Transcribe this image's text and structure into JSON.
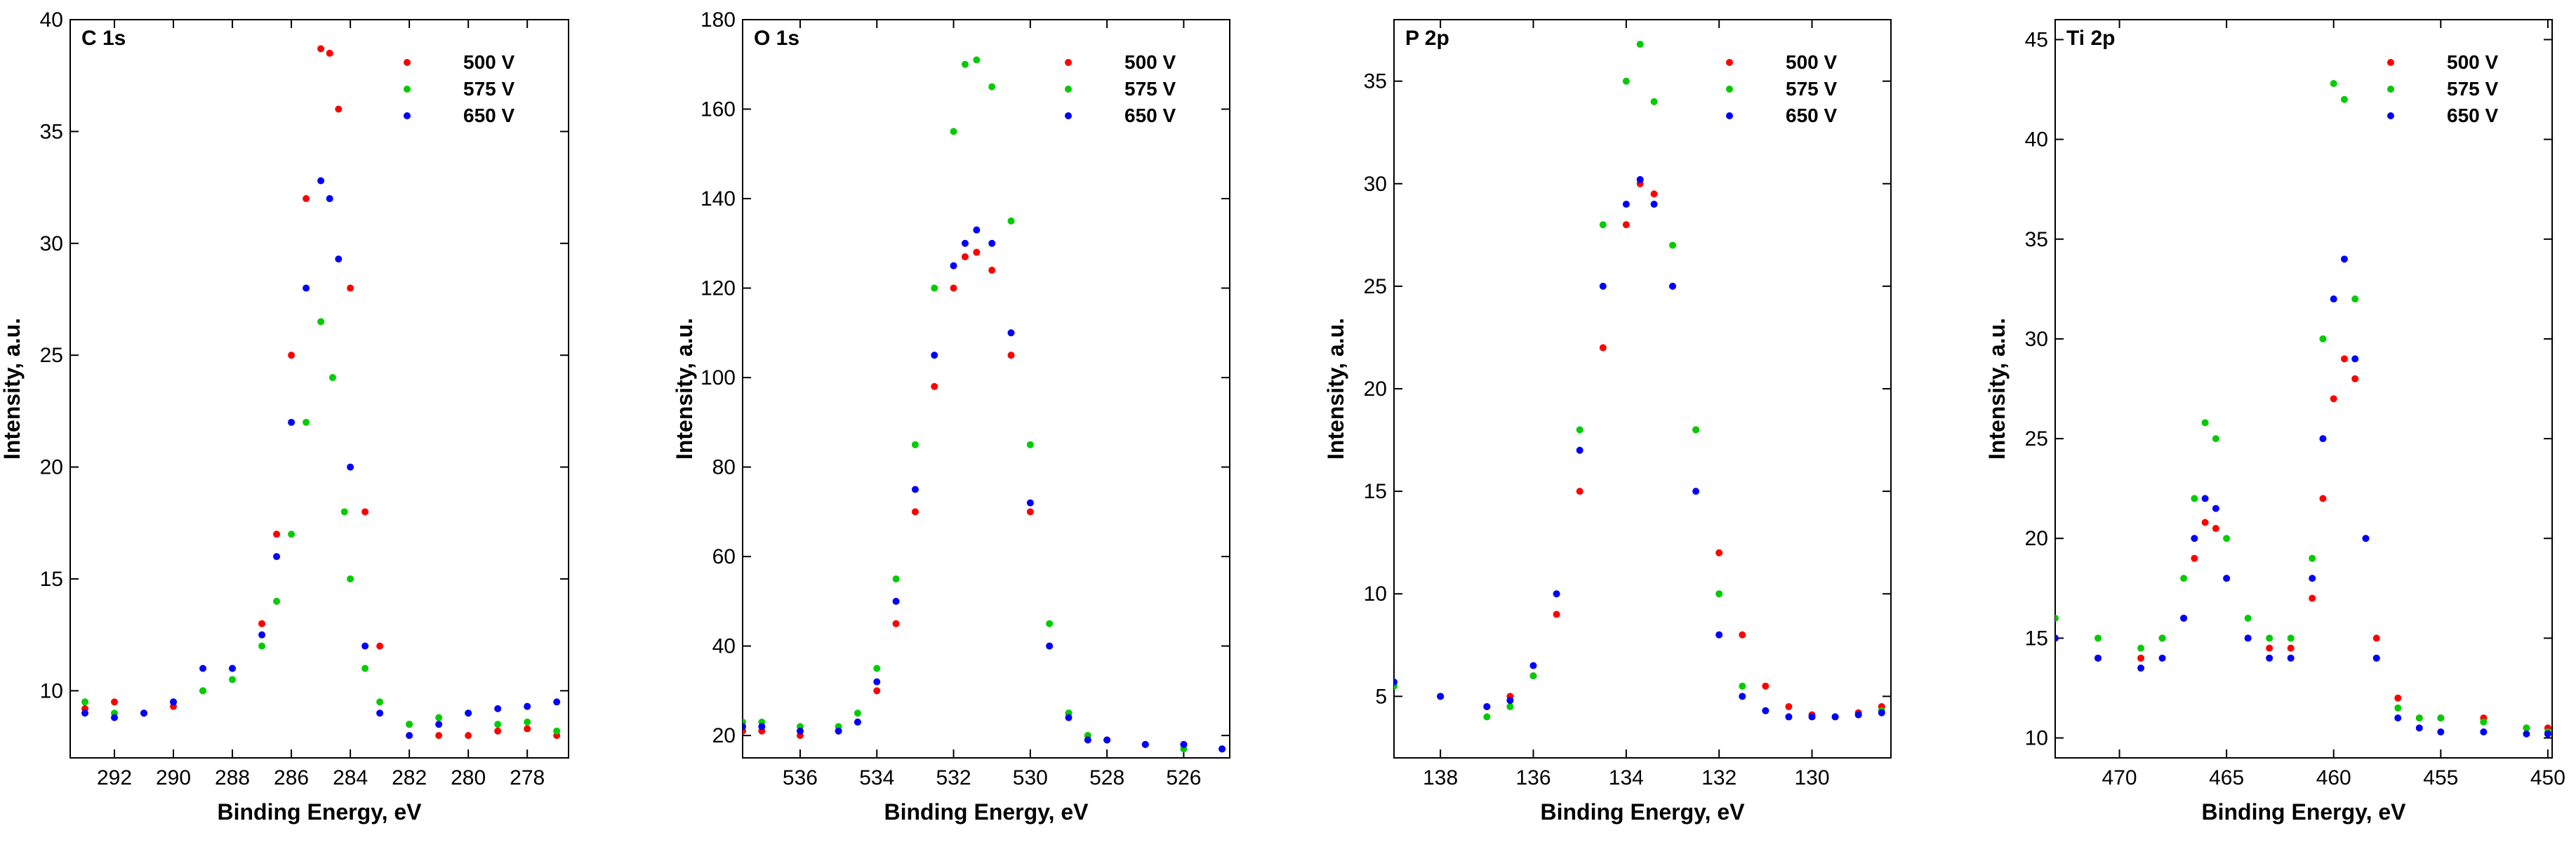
{
  "series_names": [
    "500 V",
    "575 V",
    "650 V"
  ],
  "colors": {
    "500 V": "#ff0000",
    "575 V": "#00cc00",
    "650 V": "#0000ff"
  },
  "chart_data": [
    {
      "type": "scatter",
      "title": "C 1s",
      "xlabel": "Binding Energy, eV",
      "ylabel": "Intensity, a.u.",
      "xlim": [
        293.5,
        276.6
      ],
      "ylim": [
        7,
        40
      ],
      "x_reversed": true,
      "xticks": [
        292,
        290,
        288,
        286,
        284,
        282,
        280,
        278
      ],
      "yticks": [
        10,
        15,
        20,
        25,
        30,
        35,
        40
      ],
      "legend": "top-right",
      "grid": false,
      "series": [
        {
          "name": "500 V",
          "x": [
            293,
            292,
            291,
            290,
            289,
            288,
            287,
            286.5,
            286,
            285.5,
            285,
            284.7,
            284.4,
            284,
            283.5,
            283,
            282,
            281,
            280,
            279,
            278,
            277
          ],
          "y": [
            9.2,
            9.5,
            9.0,
            9.3,
            10.0,
            11.0,
            13.0,
            17.0,
            25.0,
            32.0,
            38.7,
            38.5,
            36.0,
            28.0,
            18.0,
            12.0,
            8.5,
            8.0,
            8.0,
            8.2,
            8.3,
            8.0
          ]
        },
        {
          "name": "575 V",
          "x": [
            293,
            292,
            291,
            290,
            289,
            288,
            287,
            286.5,
            286,
            285.5,
            285,
            284.6,
            284.2,
            284,
            283.5,
            283,
            282,
            281,
            280,
            279,
            278,
            277
          ],
          "y": [
            9.5,
            9.0,
            9.0,
            9.5,
            10.0,
            10.5,
            12.0,
            14.0,
            17.0,
            22.0,
            26.5,
            24.0,
            18.0,
            15.0,
            11.0,
            9.5,
            8.5,
            8.8,
            9.0,
            8.5,
            8.6,
            8.2
          ]
        },
        {
          "name": "650 V",
          "x": [
            293,
            292,
            291,
            290,
            289,
            288,
            287,
            286.5,
            286,
            285.5,
            285,
            284.7,
            284.4,
            284,
            283.5,
            283,
            282,
            281,
            280,
            279,
            278,
            277
          ],
          "y": [
            9.0,
            8.8,
            9.0,
            9.5,
            11.0,
            11.0,
            12.5,
            16.0,
            22.0,
            28.0,
            32.8,
            32.0,
            29.3,
            20.0,
            12.0,
            9.0,
            8.0,
            8.5,
            9.0,
            9.2,
            9.3,
            9.5
          ]
        }
      ]
    },
    {
      "type": "scatter",
      "title": "O 1s",
      "xlabel": "Binding Energy, eV",
      "ylabel": "Intensity, a.u.",
      "xlim": [
        537.5,
        524.8
      ],
      "ylim": [
        15,
        180
      ],
      "x_reversed": true,
      "xticks": [
        536,
        534,
        532,
        530,
        528,
        526
      ],
      "yticks": [
        20,
        40,
        60,
        80,
        100,
        120,
        140,
        160,
        180
      ],
      "legend": "top-right",
      "grid": false,
      "series": [
        {
          "name": "500 V",
          "x": [
            537.5,
            537,
            536,
            535,
            534.5,
            534,
            533.5,
            533,
            532.5,
            532,
            531.7,
            531.4,
            531,
            530.5,
            530,
            529.5,
            529,
            528.5,
            528,
            527,
            526,
            525
          ],
          "y": [
            21,
            21,
            20,
            21,
            23,
            30,
            45,
            70,
            98,
            120,
            127,
            128,
            124,
            105,
            70,
            40,
            25,
            20,
            19,
            18,
            18,
            17
          ]
        },
        {
          "name": "575 V",
          "x": [
            537.5,
            537,
            536,
            535,
            534.5,
            534,
            533.5,
            533,
            532.5,
            532,
            531.7,
            531.4,
            531,
            530.5,
            530,
            529.5,
            529,
            528.5,
            528,
            527,
            526,
            525
          ],
          "y": [
            23,
            23,
            22,
            22,
            25,
            35,
            55,
            85,
            120,
            155,
            170,
            171,
            165,
            135,
            85,
            45,
            25,
            20,
            19,
            18,
            17,
            17
          ]
        },
        {
          "name": "650 V",
          "x": [
            537.5,
            537,
            536,
            535,
            534.5,
            534,
            533.5,
            533,
            532.5,
            532,
            531.7,
            531.4,
            531,
            530.5,
            530,
            529.5,
            529,
            528.5,
            528,
            527,
            526,
            525
          ],
          "y": [
            22,
            22,
            21,
            21,
            23,
            32,
            50,
            75,
            105,
            125,
            130,
            133,
            130,
            110,
            72,
            40,
            24,
            19,
            19,
            18,
            18,
            17
          ]
        }
      ]
    },
    {
      "type": "scatter",
      "title": "P 2p",
      "xlabel": "Binding Energy, eV",
      "ylabel": "Intensity, a.u.",
      "xlim": [
        139,
        128.3
      ],
      "ylim": [
        2,
        38
      ],
      "x_reversed": true,
      "xticks": [
        138,
        136,
        134,
        132,
        130
      ],
      "yticks": [
        5,
        10,
        15,
        20,
        25,
        30,
        35
      ],
      "legend": "top-right",
      "grid": false,
      "series": [
        {
          "name": "500 V",
          "x": [
            139,
            138,
            137,
            136.5,
            136,
            135.5,
            135,
            134.5,
            134,
            133.7,
            133.4,
            133,
            132.5,
            132,
            131.5,
            131,
            130.5,
            130,
            129.5,
            129,
            128.5
          ],
          "y": [
            5.5,
            5.0,
            4.5,
            5.0,
            6.0,
            9.0,
            15.0,
            22.0,
            28.0,
            30.0,
            29.5,
            25.0,
            18.0,
            12.0,
            8.0,
            5.5,
            4.5,
            4.1,
            4.0,
            4.2,
            4.5
          ]
        },
        {
          "name": "575 V",
          "x": [
            139,
            138,
            137,
            136.5,
            136,
            135.5,
            135,
            134.5,
            134,
            133.7,
            133.4,
            133,
            132.5,
            132,
            131.5,
            131,
            130.5,
            130,
            129.5,
            129,
            128.5
          ],
          "y": [
            5.5,
            5.0,
            4.0,
            4.5,
            6.0,
            10.0,
            18.0,
            28.0,
            35.0,
            36.8,
            34.0,
            27.0,
            18.0,
            10.0,
            5.5,
            4.3,
            4.0,
            4.0,
            4.0,
            4.1,
            4.3
          ]
        },
        {
          "name": "650 V",
          "x": [
            139,
            138,
            137,
            136.5,
            136,
            135.5,
            135,
            134.5,
            134,
            133.7,
            133.4,
            133,
            132.5,
            132,
            131.5,
            131,
            130.5,
            130,
            129.5,
            129,
            128.5
          ],
          "y": [
            5.7,
            5.0,
            4.5,
            4.8,
            6.5,
            10.0,
            17.0,
            25.0,
            29.0,
            30.2,
            29.0,
            25.0,
            15.0,
            8.0,
            5.0,
            4.3,
            4.0,
            4.0,
            4.0,
            4.1,
            4.2
          ]
        }
      ]
    },
    {
      "type": "scatter",
      "title": "Ti 2p",
      "xlabel": "Binding Energy, eV",
      "ylabel": "Intensity, a.u.",
      "xlim": [
        473,
        449.8
      ],
      "ylim": [
        9,
        46
      ],
      "x_reversed": true,
      "xticks": [
        470,
        465,
        460,
        455,
        450
      ],
      "yticks": [
        10,
        15,
        20,
        25,
        30,
        35,
        40,
        45
      ],
      "legend": "top-right",
      "grid": false,
      "series": [
        {
          "name": "500 V",
          "x": [
            473,
            471,
            469,
            468,
            467,
            466.5,
            466,
            465.5,
            465,
            464,
            463,
            462,
            461,
            460.5,
            460,
            459.5,
            459,
            458.5,
            458,
            457,
            456,
            455,
            453,
            451,
            450
          ],
          "y": [
            15,
            14,
            14,
            15,
            16,
            19,
            20.8,
            20.5,
            18,
            15,
            14.5,
            14.5,
            17,
            22,
            27,
            29,
            28,
            20,
            15,
            12,
            11,
            11,
            11,
            10.5,
            10.5
          ]
        },
        {
          "name": "575 V",
          "x": [
            473,
            471,
            469,
            468,
            467,
            466.5,
            466,
            465.5,
            465,
            464,
            463,
            462,
            461,
            460.5,
            460,
            459.5,
            459,
            458.5,
            458,
            457,
            456,
            455,
            453,
            451,
            450
          ],
          "y": [
            16,
            15,
            14.5,
            15,
            18,
            22,
            25.8,
            25,
            20,
            16,
            15,
            15,
            19,
            30,
            42.8,
            42,
            32,
            20,
            14,
            11.5,
            11,
            11,
            10.8,
            10.5,
            10.3
          ]
        },
        {
          "name": "650 V",
          "x": [
            473,
            471,
            469,
            468,
            467,
            466.5,
            466,
            465.5,
            465,
            464,
            463,
            462,
            461,
            460.5,
            460,
            459.5,
            459,
            458.5,
            458,
            457,
            456,
            455,
            453,
            451,
            450
          ],
          "y": [
            15,
            14,
            13.5,
            14,
            16,
            20,
            22,
            21.5,
            18,
            15,
            14,
            14,
            18,
            25,
            32,
            34,
            29,
            20,
            14,
            11,
            10.5,
            10.3,
            10.3,
            10.2,
            10.2
          ]
        }
      ]
    }
  ]
}
